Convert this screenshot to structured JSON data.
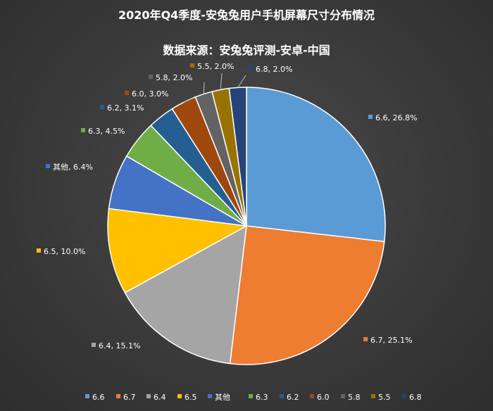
{
  "chart_data": {
    "type": "pie",
    "title": "2020年Q4季度-安兔兔用户手机屏幕尺寸分布情况",
    "subtitle": "数据来源：安兔兔评测-安卓-中国",
    "slices": [
      {
        "name": "6.6",
        "value": 26.8,
        "label": "6.6, 26.8%",
        "color": "#5b9bd5"
      },
      {
        "name": "6.7",
        "value": 25.1,
        "label": "6.7, 25.1%",
        "color": "#ed7d31"
      },
      {
        "name": "6.4",
        "value": 15.1,
        "label": "6.4, 15.1%",
        "color": "#a5a5a5"
      },
      {
        "name": "6.5",
        "value": 10.0,
        "label": "6.5, 10.0%",
        "color": "#ffc000"
      },
      {
        "name": "其他",
        "value": 6.4,
        "label": "其他, 6.4%",
        "color": "#4472c4"
      },
      {
        "name": "6.3",
        "value": 4.5,
        "label": "6.3, 4.5%",
        "color": "#70ad47"
      },
      {
        "name": "6.2",
        "value": 3.1,
        "label": "6.2, 3.1%",
        "color": "#255e91"
      },
      {
        "name": "6.0",
        "value": 3.0,
        "label": "6.0, 3.0%",
        "color": "#9e480e"
      },
      {
        "name": "5.8",
        "value": 2.0,
        "label": "5.8, 2.0%",
        "color": "#636363"
      },
      {
        "name": "5.5",
        "value": 2.0,
        "label": "5.5, 2.0%",
        "color": "#997300"
      },
      {
        "name": "6.8",
        "value": 2.0,
        "label": "6.8, 2.0%",
        "color": "#264478"
      }
    ],
    "legend_position": "bottom",
    "start_angle_deg": 0,
    "direction": "clockwise"
  }
}
